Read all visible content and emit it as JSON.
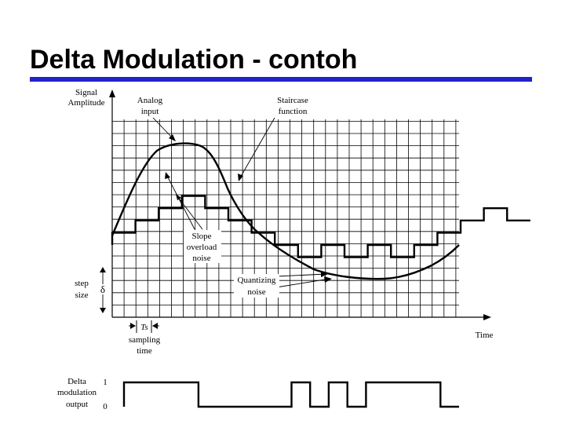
{
  "slide": {
    "title": "Delta Modulation - contoh",
    "accent_color": "#2222cc"
  },
  "diagram": {
    "axis_y_label_line1": "Signal",
    "axis_y_label_line2": "Amplitude",
    "axis_x_label": "Time",
    "analog_label_line1": "Analog",
    "analog_label_line2": "input",
    "staircase_label_line1": "Staircase",
    "staircase_label_line2": "function",
    "slope_label_line1": "Slope",
    "slope_label_line2": "overload",
    "slope_label_line3": "noise",
    "quant_label_line1": "Quantizing",
    "quant_label_line2": "noise",
    "step_label_line1": "step",
    "step_label_line2": "size",
    "delta_symbol": "δ",
    "ts_symbol": "Ts",
    "sampling_label_line1": "sampling",
    "sampling_label_line2": "time",
    "output_label_line1": "Delta",
    "output_label_line2": "modulation",
    "output_label_line3": "output",
    "output_level_high": "1",
    "output_level_low": "0",
    "output_bits": [
      1,
      1,
      1,
      1,
      0,
      0,
      0,
      0,
      0,
      1,
      0,
      1,
      0,
      1,
      1,
      1,
      1,
      0
    ]
  }
}
